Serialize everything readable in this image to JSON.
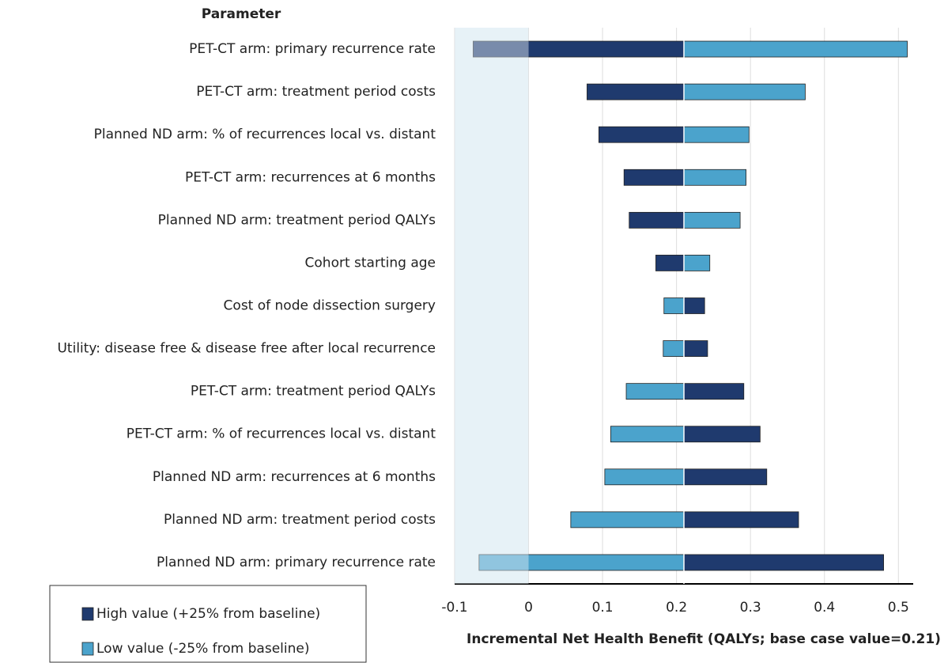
{
  "chart_data": {
    "type": "tornado",
    "header": "Parameter",
    "x_label": "Incremental Net Health Benefit (QALYs; base case value=0.21)",
    "base": 0.21,
    "categories": [
      "PET-CT arm: primary recurrence rate",
      "PET-CT arm: treatment period costs",
      "Planned ND arm: % of recurrences local vs. distant",
      "PET-CT arm: recurrences at 6 months",
      "Planned ND arm: treatment period QALYs",
      "Cohort starting age",
      "Cost of node dissection surgery",
      "Utility: disease free & disease free after local recurrence",
      "PET-CT arm: treatment period QALYs",
      "PET-CT arm: % of recurrences local vs. distant",
      "Planned ND arm: recurrences at 6 months",
      "Planned ND arm: treatment period costs",
      "Planned ND arm: primary recurrence rate"
    ],
    "series": [
      {
        "name": "High value (+25% from baseline)",
        "color": "#1f3a6e",
        "values": [
          -0.075,
          0.079,
          0.095,
          0.129,
          0.136,
          0.172,
          0.238,
          0.242,
          0.291,
          0.313,
          0.322,
          0.365,
          0.48
        ]
      },
      {
        "name": "Low value (-25% from baseline)",
        "color": "#4ba3cc",
        "values": [
          0.512,
          0.374,
          0.298,
          0.294,
          0.286,
          0.245,
          0.183,
          0.182,
          0.132,
          0.111,
          0.103,
          0.057,
          -0.067
        ]
      }
    ],
    "xlim": [
      -0.1,
      0.52
    ],
    "xticks": [
      -0.1,
      0,
      0.1,
      0.2,
      0.3,
      0.4,
      0.5
    ],
    "grid": true,
    "shaded_range": [
      -0.1,
      0
    ],
    "legend": "bottom-left"
  }
}
